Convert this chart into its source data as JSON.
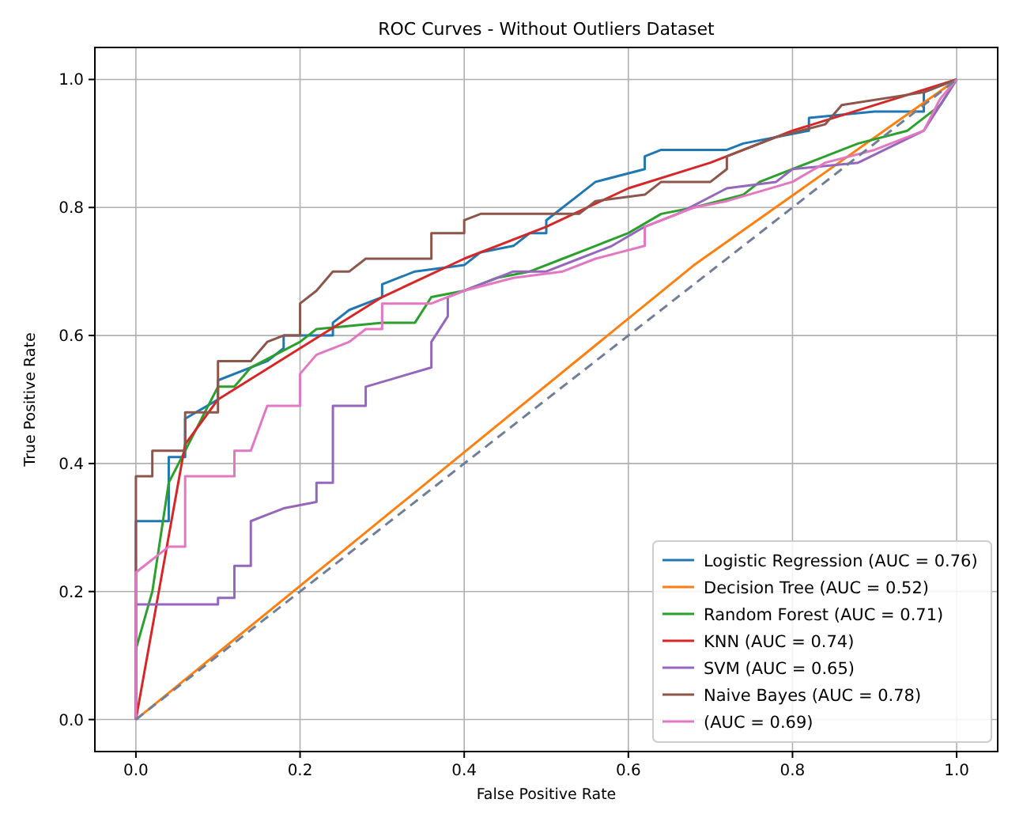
{
  "chart_data": {
    "type": "line",
    "title": "ROC Curves - Without Outliers Dataset",
    "xlabel": "False Positive Rate",
    "ylabel": "True Positive Rate",
    "xlim": [
      -0.05,
      1.05
    ],
    "ylim": [
      -0.05,
      1.05
    ],
    "xticks": [
      {
        "value": 0,
        "label": "0.0"
      },
      {
        "value": 0.2,
        "label": "0.2"
      },
      {
        "value": 0.4,
        "label": "0.4"
      },
      {
        "value": 0.6,
        "label": "0.6"
      },
      {
        "value": 0.8,
        "label": "0.8"
      },
      {
        "value": 1,
        "label": "1.0"
      }
    ],
    "yticks": [
      {
        "value": 0,
        "label": "0.0"
      },
      {
        "value": 0.2,
        "label": "0.2"
      },
      {
        "value": 0.4,
        "label": "0.4"
      },
      {
        "value": 0.6,
        "label": "0.6"
      },
      {
        "value": 0.8,
        "label": "0.8"
      },
      {
        "value": 1,
        "label": "1.0"
      }
    ],
    "grid": true,
    "legend": "bottom right",
    "marker": "none",
    "series": [
      {
        "name": "Logistic Regression (AUC = 0.76)",
        "color": "#1f77b4",
        "x": [
          0,
          0,
          0.04,
          0.04,
          0.06,
          0.06,
          0.1,
          0.1,
          0.16,
          0.18,
          0.18,
          0.24,
          0.24,
          0.26,
          0.3,
          0.3,
          0.34,
          0.4,
          0.42,
          0.46,
          0.48,
          0.5,
          0.5,
          0.52,
          0.54,
          0.56,
          0.62,
          0.62,
          0.64,
          0.72,
          0.74,
          0.82,
          0.82,
          0.9,
          0.96,
          0.96,
          1
        ],
        "values": [
          0,
          0.31,
          0.31,
          0.41,
          0.41,
          0.47,
          0.5,
          0.53,
          0.56,
          0.58,
          0.6,
          0.6,
          0.62,
          0.64,
          0.66,
          0.68,
          0.7,
          0.71,
          0.73,
          0.74,
          0.76,
          0.76,
          0.78,
          0.8,
          0.82,
          0.84,
          0.86,
          0.88,
          0.89,
          0.89,
          0.9,
          0.92,
          0.94,
          0.95,
          0.95,
          0.98,
          1
        ]
      },
      {
        "name": "Decision Tree (AUC = 0.52)",
        "color": "#ff7f0e",
        "x": [
          0,
          0.68,
          1
        ],
        "values": [
          0,
          0.71,
          1
        ]
      },
      {
        "name": "Random Forest (AUC = 0.71)",
        "color": "#2ca02c",
        "x": [
          0,
          0,
          0.02,
          0.04,
          0.06,
          0.08,
          0.1,
          0.12,
          0.14,
          0.2,
          0.22,
          0.3,
          0.34,
          0.36,
          0.4,
          0.44,
          0.48,
          0.52,
          0.56,
          0.6,
          0.64,
          0.68,
          0.74,
          0.76,
          0.82,
          0.88,
          0.94,
          0.98,
          1
        ],
        "values": [
          0,
          0.11,
          0.2,
          0.37,
          0.42,
          0.47,
          0.52,
          0.52,
          0.55,
          0.59,
          0.61,
          0.62,
          0.62,
          0.66,
          0.67,
          0.69,
          0.7,
          0.72,
          0.74,
          0.76,
          0.79,
          0.8,
          0.82,
          0.84,
          0.87,
          0.9,
          0.92,
          0.96,
          1
        ]
      },
      {
        "name": "KNN (AUC = 0.74)",
        "color": "#d62728",
        "x": [
          0,
          0.06,
          0.1,
          0.2,
          0.3,
          0.4,
          0.5,
          0.6,
          0.7,
          0.8,
          0.9,
          1
        ],
        "values": [
          0,
          0.43,
          0.5,
          0.58,
          0.66,
          0.72,
          0.77,
          0.83,
          0.87,
          0.92,
          0.96,
          1
        ]
      },
      {
        "name": "SVM (AUC = 0.65)",
        "color": "#9467bd",
        "x": [
          0,
          0,
          0.1,
          0.1,
          0.12,
          0.12,
          0.14,
          0.14,
          0.16,
          0.18,
          0.22,
          0.22,
          0.24,
          0.24,
          0.28,
          0.28,
          0.36,
          0.36,
          0.38,
          0.38,
          0.42,
          0.46,
          0.5,
          0.54,
          0.58,
          0.62,
          0.66,
          0.72,
          0.78,
          0.8,
          0.88,
          0.96,
          1
        ],
        "values": [
          0,
          0.18,
          0.18,
          0.19,
          0.19,
          0.24,
          0.24,
          0.31,
          0.32,
          0.33,
          0.34,
          0.37,
          0.37,
          0.49,
          0.49,
          0.52,
          0.55,
          0.59,
          0.63,
          0.66,
          0.68,
          0.7,
          0.7,
          0.72,
          0.74,
          0.77,
          0.79,
          0.83,
          0.84,
          0.86,
          0.87,
          0.92,
          1
        ]
      },
      {
        "name": "Naive Bayes (AUC = 0.78)",
        "color": "#8c564b",
        "x": [
          0,
          0,
          0.02,
          0.02,
          0.06,
          0.06,
          0.1,
          0.1,
          0.14,
          0.16,
          0.18,
          0.2,
          0.2,
          0.22,
          0.24,
          0.26,
          0.28,
          0.36,
          0.36,
          0.4,
          0.4,
          0.42,
          0.54,
          0.56,
          0.62,
          0.64,
          0.7,
          0.72,
          0.72,
          0.78,
          0.84,
          0.86,
          0.96,
          1
        ],
        "values": [
          0,
          0.38,
          0.38,
          0.42,
          0.42,
          0.48,
          0.48,
          0.56,
          0.56,
          0.59,
          0.6,
          0.6,
          0.65,
          0.67,
          0.7,
          0.7,
          0.72,
          0.72,
          0.76,
          0.76,
          0.78,
          0.79,
          0.79,
          0.81,
          0.82,
          0.84,
          0.84,
          0.86,
          0.88,
          0.91,
          0.93,
          0.96,
          0.98,
          1
        ]
      },
      {
        "name": "(AUC = 0.69)",
        "color": "#e377c2",
        "x": [
          0,
          0,
          0.02,
          0.04,
          0.06,
          0.06,
          0.12,
          0.12,
          0.14,
          0.16,
          0.2,
          0.2,
          0.22,
          0.26,
          0.28,
          0.3,
          0.3,
          0.36,
          0.4,
          0.46,
          0.52,
          0.56,
          0.62,
          0.62,
          0.68,
          0.72,
          0.8,
          0.84,
          0.9,
          0.96,
          0.98,
          1
        ],
        "values": [
          0,
          0.23,
          0.25,
          0.27,
          0.27,
          0.38,
          0.38,
          0.42,
          0.42,
          0.49,
          0.49,
          0.54,
          0.57,
          0.59,
          0.61,
          0.61,
          0.65,
          0.65,
          0.67,
          0.69,
          0.7,
          0.72,
          0.74,
          0.77,
          0.8,
          0.81,
          0.84,
          0.87,
          0.89,
          0.92,
          0.97,
          1
        ]
      },
      {
        "color": "#6f7f99",
        "line_style": "dashed",
        "x": [
          0,
          1
        ],
        "values": [
          0,
          1
        ]
      }
    ]
  }
}
